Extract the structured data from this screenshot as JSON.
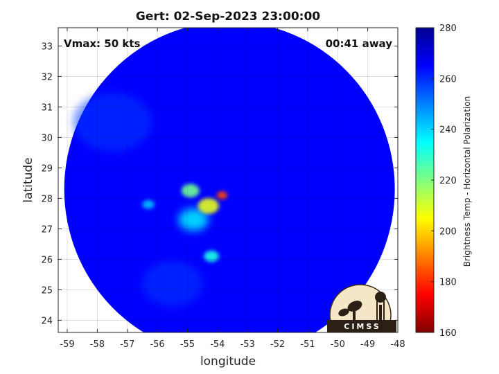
{
  "chart_data": {
    "type": "heatmap",
    "title": "Gert: 02-Sep-2023 23:00:00",
    "xlabel": "longitude",
    "ylabel": "latitude",
    "xlim": [
      -59.3,
      -48
    ],
    "ylim": [
      23.6,
      33.6
    ],
    "xticks": [
      -59,
      -58,
      -57,
      -56,
      -55,
      -54,
      -53,
      -52,
      -51,
      -50,
      -49,
      -48
    ],
    "yticks": [
      24,
      25,
      26,
      27,
      28,
      29,
      30,
      31,
      32,
      33
    ],
    "grid": true,
    "annotations": {
      "vmax": "Vmax: 50 kts",
      "time_away": "00:41 away"
    },
    "swath": {
      "center_lon": -53.6,
      "center_lat": 28.3,
      "radius_deg": 5.5
    },
    "features": [
      {
        "lon": -53.85,
        "lat": 28.1,
        "value": 183,
        "spread_deg": 0.18
      },
      {
        "lon": -54.3,
        "lat": 27.75,
        "value": 208,
        "spread_deg": 0.35
      },
      {
        "lon": -54.9,
        "lat": 28.25,
        "value": 222,
        "spread_deg": 0.3
      },
      {
        "lon": -54.2,
        "lat": 26.1,
        "value": 232,
        "spread_deg": 0.25
      },
      {
        "lon": -54.8,
        "lat": 27.3,
        "value": 238,
        "spread_deg": 0.5
      },
      {
        "lon": -56.3,
        "lat": 27.8,
        "value": 242,
        "spread_deg": 0.2
      },
      {
        "lon": -57.5,
        "lat": 30.5,
        "value": 258,
        "spread_deg": 1.3
      },
      {
        "lon": -55.5,
        "lat": 25.2,
        "value": 258,
        "spread_deg": 1.0
      }
    ],
    "background_value": 265,
    "colorbar": {
      "label": "Brightness Temp - Horizontal Polarization",
      "range": [
        160,
        280
      ],
      "ticks": [
        160,
        180,
        200,
        220,
        240,
        260,
        280
      ],
      "colormap": [
        "#800000",
        "#ff0000",
        "#ff8000",
        "#ffff00",
        "#80ff80",
        "#00ffff",
        "#0080ff",
        "#0000ff",
        "#00008f"
      ]
    }
  },
  "logo": {
    "text": "CIMSS"
  }
}
